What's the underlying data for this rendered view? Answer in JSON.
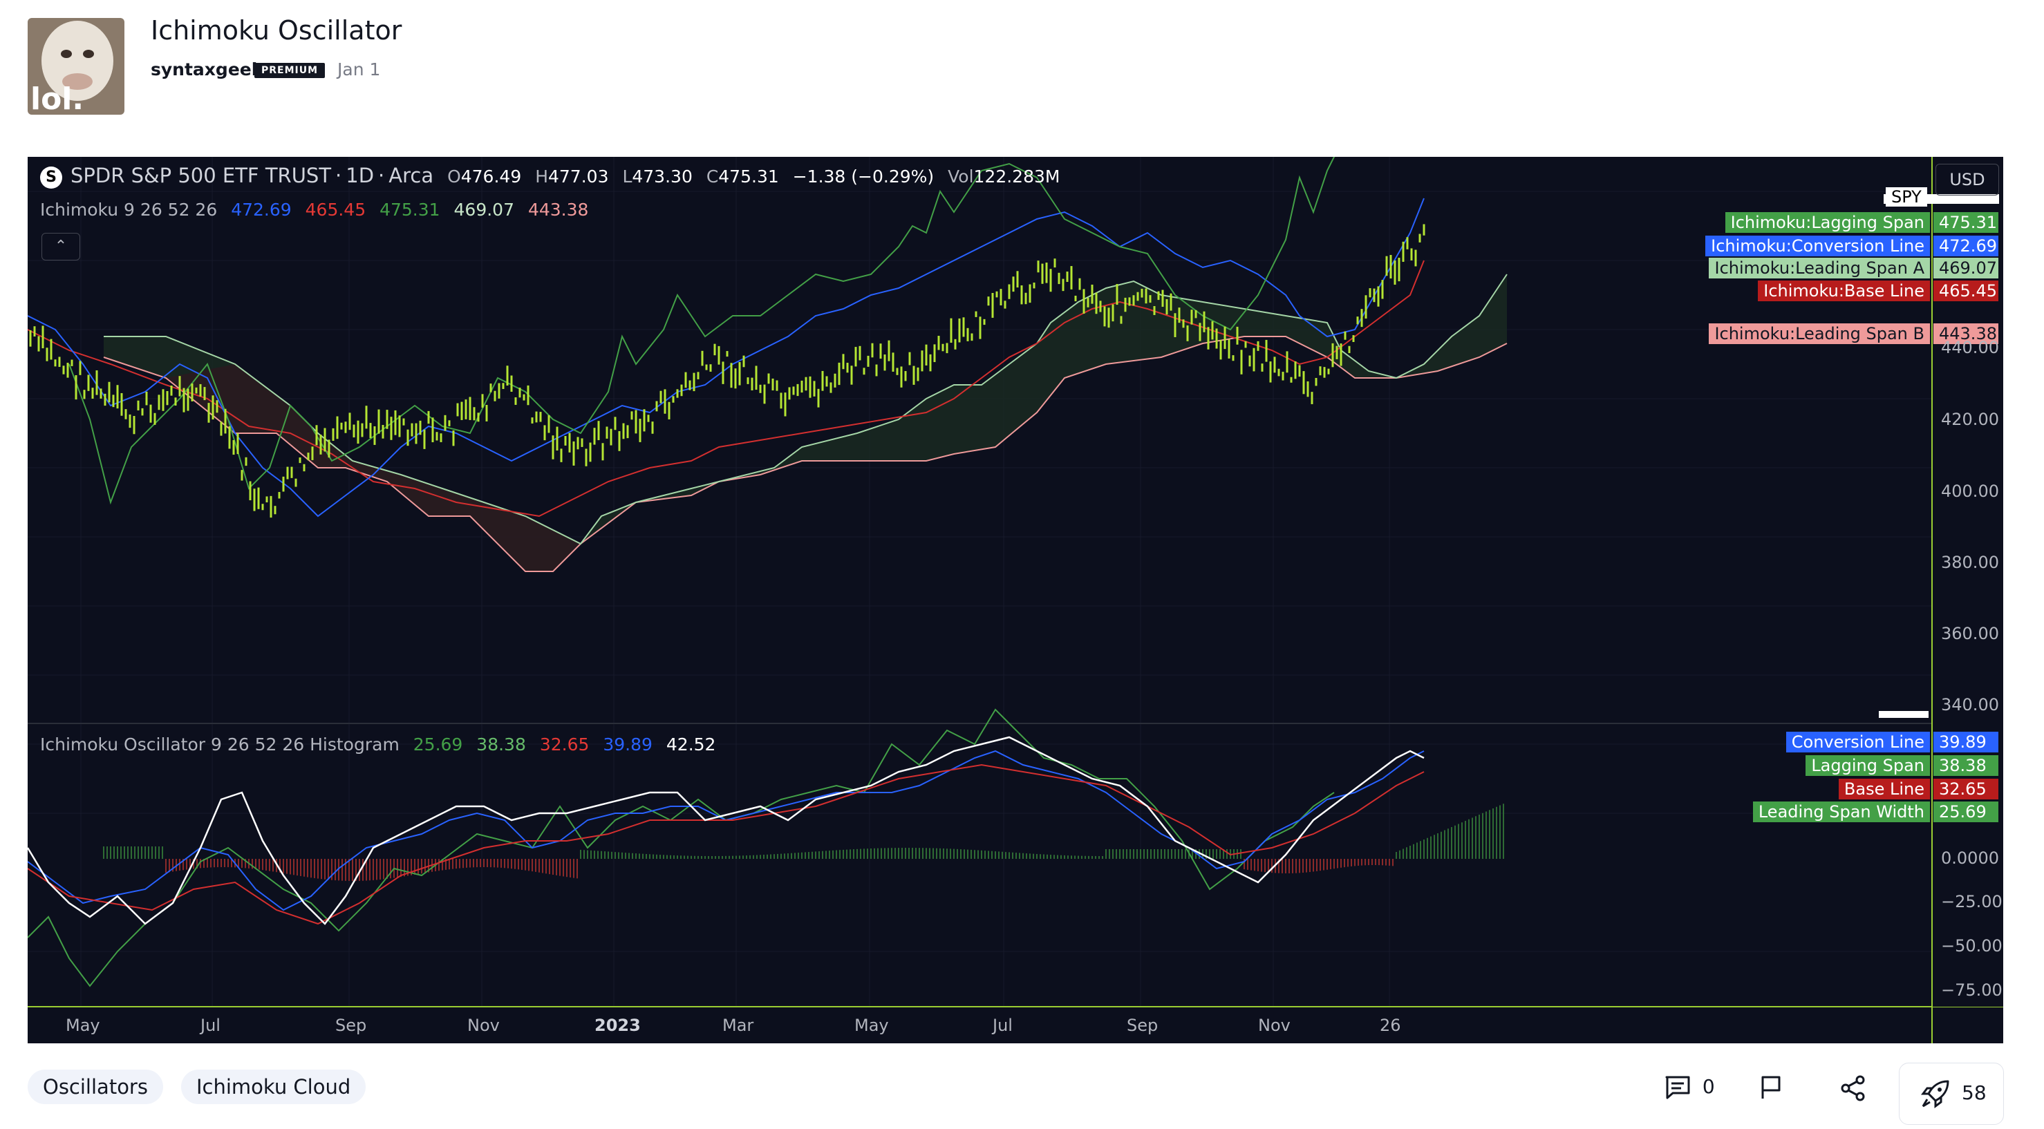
{
  "post": {
    "title": "Ichimoku Oscillator",
    "author": "syntaxgeek",
    "badge": "PREMIUM",
    "date": "Jan 1",
    "avatar_text": "lol."
  },
  "chart": {
    "symbol_icon": "S",
    "symbol": "SPDR S&P 500 ETF TRUST",
    "interval": "1D",
    "exchange": "Arca",
    "ohlc": {
      "o_label": "O",
      "o": "476.49",
      "h_label": "H",
      "h": "477.03",
      "l_label": "L",
      "l": "473.30",
      "c_label": "C",
      "c": "475.31",
      "change": "−1.38 (−0.29%)",
      "vol_label": "Vol",
      "vol": "122.283M"
    },
    "currency": "USD",
    "ticker_tag": "SPY",
    "ichimoku_legend": {
      "name": "Ichimoku 9 26 52 26",
      "v1": "472.69",
      "v2": "465.45",
      "v3": "475.31",
      "v4": "469.07",
      "v5": "443.38"
    },
    "oscillator_legend": {
      "name": "Ichimoku Oscillator 9 26 52 26 Histogram",
      "v1": "25.69",
      "v2": "38.38",
      "v3": "32.65",
      "v4": "39.89",
      "v5": "42.52"
    },
    "price_labels": [
      {
        "name": "Ichimoku:Lagging Span",
        "value": "475.31",
        "color": "#43a047",
        "text_color": "#ffffff"
      },
      {
        "name": "Ichimoku:Conversion Line",
        "value": "472.69",
        "color": "#2962ff",
        "text_color": "#ffffff"
      },
      {
        "name": "Ichimoku:Leading Span A",
        "value": "469.07",
        "color": "#a5d6a7",
        "text_color": "#131722"
      },
      {
        "name": "Ichimoku:Base Line",
        "value": "465.45",
        "color": "#b71c1c",
        "text_color": "#ffffff"
      },
      {
        "name": "Ichimoku:Leading Span B",
        "value": "443.38",
        "color": "#ef9a9a",
        "text_color": "#131722"
      }
    ],
    "osc_labels": [
      {
        "name": "Conversion Line",
        "value": "39.89",
        "color": "#2962ff"
      },
      {
        "name": "Lagging Span",
        "value": "38.38",
        "color": "#43a047"
      },
      {
        "name": "Base Line",
        "value": "32.65",
        "color": "#b71c1c"
      },
      {
        "name": "Leading Span Width",
        "value": "25.69",
        "color": "#43a047"
      }
    ],
    "price_axis": [
      "440.00",
      "420.00",
      "400.00",
      "380.00",
      "360.00",
      "340.00"
    ],
    "osc_axis": [
      "0.0000",
      "−25.00",
      "−50.00",
      "−75.00"
    ],
    "time_axis": [
      "May",
      "Jul",
      "Sep",
      "Nov",
      "2023",
      "Mar",
      "May",
      "Jul",
      "Sep",
      "Nov",
      "26"
    ]
  },
  "tags": [
    "Oscillators",
    "Ichimoku Cloud"
  ],
  "footer": {
    "comments": "0",
    "boosts": "58"
  },
  "icons": {
    "comment": "comment-icon",
    "flag": "flag-icon",
    "share": "share-icon",
    "boost": "rocket-icon"
  }
}
